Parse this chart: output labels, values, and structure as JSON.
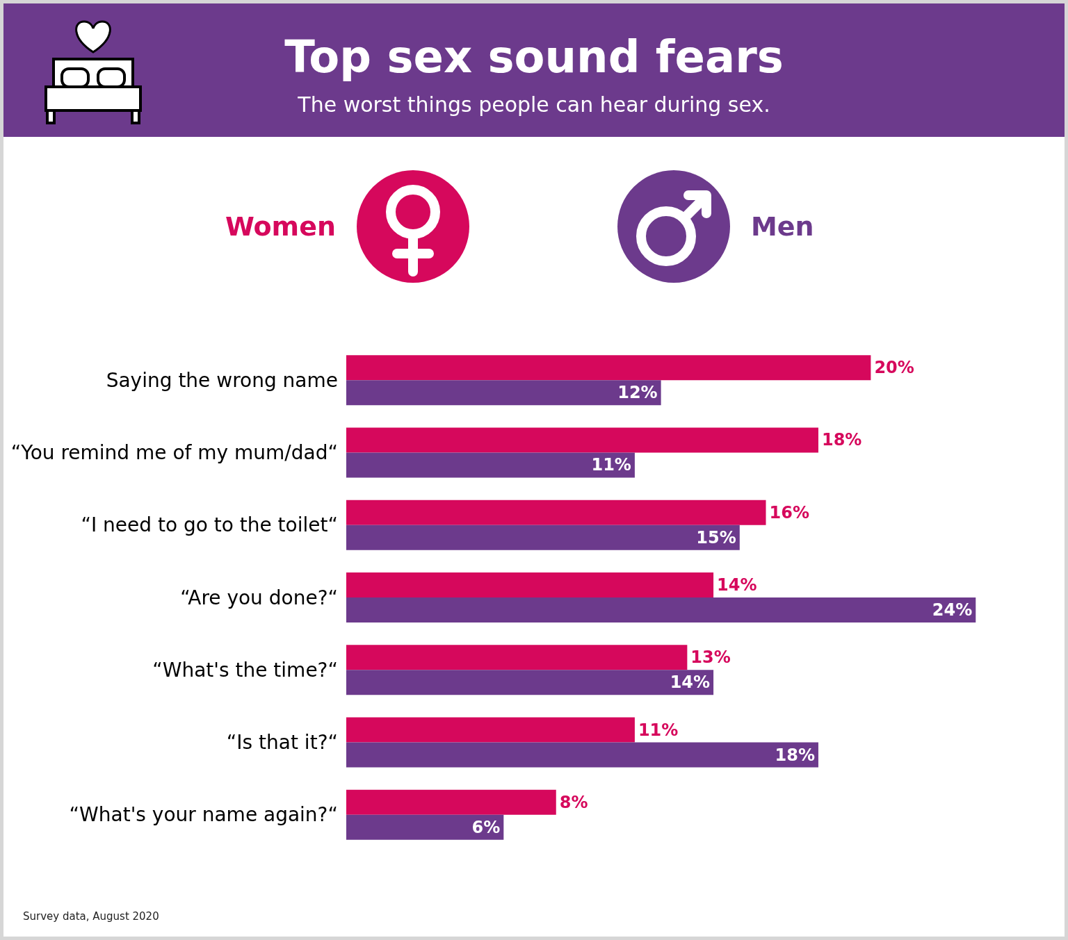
{
  "chart_data": {
    "type": "bar",
    "orientation": "horizontal",
    "title": "Top sex sound fears",
    "subtitle": "The worst things people can hear during sex.",
    "categories": [
      "Saying the wrong name",
      "“You remind me of my mum/dad“",
      "“I need to go to the toilet“",
      "“Are you done?“",
      "“What's the time?“",
      "“Is that it?“",
      "“What's your name again?“"
    ],
    "series": [
      {
        "name": "Women",
        "color": "#d6085c",
        "values": [
          20,
          18,
          16,
          14,
          13,
          11,
          8
        ],
        "value_labels": [
          "20%",
          "18%",
          "16%",
          "14%",
          "13%",
          "11%",
          "8%"
        ]
      },
      {
        "name": "Men",
        "color": "#6c3a8c",
        "values": [
          12,
          11,
          15,
          24,
          14,
          18,
          6
        ],
        "value_labels": [
          "12%",
          "11%",
          "15%",
          "24%",
          "14%",
          "18%",
          "6%"
        ]
      }
    ],
    "legend": "top",
    "annotations": [
      "Survey data, August 2020"
    ]
  }
}
